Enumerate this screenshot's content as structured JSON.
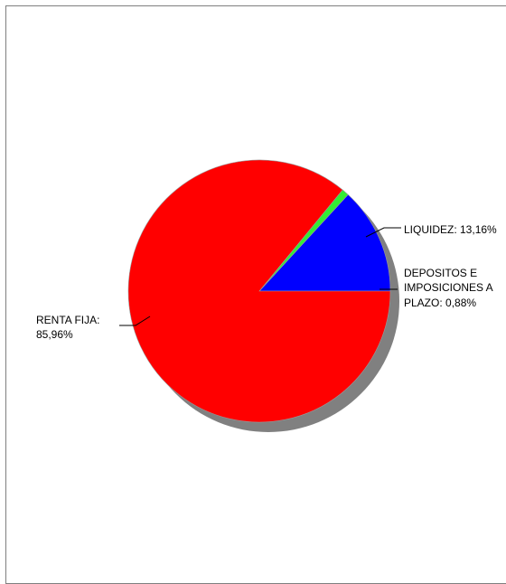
{
  "chart_data": {
    "type": "pie",
    "slices": [
      {
        "label": "LIQUIDEZ",
        "value": 13.16,
        "display": "13,16%",
        "color": "#0000ff"
      },
      {
        "label": "DEPOSITOS E IMPOSICIONES A PLAZO",
        "value": 0.88,
        "display": "0,88%",
        "color": "#33ee33"
      },
      {
        "label": "RENTA FIJA",
        "value": 85.96,
        "display": "85,96%",
        "color": "#ff0000"
      }
    ],
    "labels": {
      "liquidez": "LIQUIDEZ: 13,16%",
      "depositos_line1": "DEPOSITOS E",
      "depositos_line2": "IMPOSICIONES A",
      "depositos_line3": "PLAZO: 0,88%",
      "renta_line1": "RENTA FIJA:",
      "renta_line2": "85,96%"
    },
    "shadow_color": "#808080"
  }
}
